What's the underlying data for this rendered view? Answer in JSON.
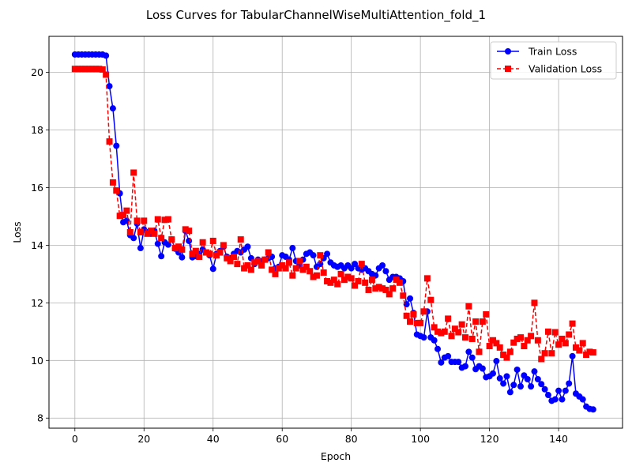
{
  "chart_data": {
    "type": "line",
    "title": "Loss Curves for TabularChannelWiseMultiAttention_fold_1",
    "xlabel": "Epoch",
    "ylabel": "Loss",
    "xlim": [
      -7.5,
      158.5
    ],
    "ylim": [
      7.65,
      21.25
    ],
    "xticks": [
      0,
      20,
      40,
      60,
      80,
      100,
      120,
      140
    ],
    "yticks": [
      8,
      10,
      12,
      14,
      16,
      18,
      20
    ],
    "grid": true,
    "legend_position": "top-right",
    "series": [
      {
        "name": "Train Loss",
        "color": "#0000ff",
        "marker": "circle",
        "linestyle": "solid",
        "x": [
          0,
          1,
          2,
          3,
          4,
          5,
          6,
          7,
          8,
          9,
          10,
          11,
          12,
          13,
          14,
          15,
          16,
          17,
          18,
          19,
          20,
          21,
          22,
          23,
          24,
          25,
          26,
          27,
          28,
          29,
          30,
          31,
          32,
          33,
          34,
          35,
          36,
          37,
          38,
          39,
          40,
          41,
          42,
          43,
          44,
          45,
          46,
          47,
          48,
          49,
          50,
          51,
          52,
          53,
          54,
          55,
          56,
          57,
          58,
          59,
          60,
          61,
          62,
          63,
          64,
          65,
          66,
          67,
          68,
          69,
          70,
          71,
          72,
          73,
          74,
          75,
          76,
          77,
          78,
          79,
          80,
          81,
          82,
          83,
          84,
          85,
          86,
          87,
          88,
          89,
          90,
          91,
          92,
          93,
          94,
          95,
          96,
          97,
          98,
          99,
          100,
          101,
          102,
          103,
          104,
          105,
          106,
          107,
          108,
          109,
          110,
          111,
          112,
          113,
          114,
          115,
          116,
          117,
          118,
          119,
          120,
          121,
          122,
          123,
          124,
          125,
          126,
          127,
          128,
          129,
          130,
          131,
          132,
          133,
          134,
          135,
          136,
          137,
          138,
          139,
          140,
          141,
          142,
          143,
          144,
          145,
          146,
          147,
          148,
          149,
          150
        ],
        "y": [
          20.62,
          20.62,
          20.62,
          20.62,
          20.62,
          20.62,
          20.62,
          20.62,
          20.62,
          20.58,
          19.52,
          18.75,
          17.45,
          15.8,
          14.8,
          14.85,
          14.35,
          14.25,
          14.75,
          13.9,
          14.55,
          14.45,
          14.4,
          14.5,
          14.05,
          13.62,
          14.1,
          14.02,
          14.2,
          13.88,
          13.75,
          13.58,
          14.5,
          14.15,
          13.58,
          13.62,
          13.7,
          13.85,
          13.75,
          13.65,
          13.18,
          13.7,
          13.8,
          13.95,
          13.6,
          13.55,
          13.7,
          13.8,
          13.75,
          13.85,
          13.95,
          13.55,
          13.35,
          13.5,
          13.45,
          13.5,
          13.55,
          13.6,
          13.2,
          13.25,
          13.65,
          13.6,
          13.5,
          13.9,
          13.45,
          13.3,
          13.5,
          13.7,
          13.75,
          13.65,
          13.25,
          13.35,
          13.55,
          13.7,
          13.4,
          13.3,
          13.25,
          13.3,
          13.2,
          13.3,
          13.2,
          13.35,
          13.2,
          13.15,
          13.2,
          13.1,
          13.0,
          12.95,
          13.2,
          13.3,
          13.1,
          12.8,
          12.9,
          12.9,
          12.85,
          12.75,
          11.95,
          12.15,
          11.65,
          10.9,
          10.85,
          10.8,
          11.7,
          10.8,
          10.7,
          10.4,
          9.93,
          10.1,
          10.15,
          9.95,
          9.95,
          9.95,
          9.75,
          9.8,
          10.3,
          10.1,
          9.7,
          9.8,
          9.72,
          9.42,
          9.45,
          9.55,
          9.98,
          9.38,
          9.2,
          9.45,
          8.9,
          9.15,
          9.68,
          9.1,
          9.48,
          9.35,
          9.1,
          9.62,
          9.35,
          9.18,
          9.0,
          8.8,
          8.6,
          8.65,
          8.95,
          8.65,
          8.95,
          9.2,
          10.15,
          8.85,
          8.75,
          8.65,
          8.4,
          8.32,
          8.3
        ]
      },
      {
        "name": "Validation Loss",
        "color": "#ff0000",
        "marker": "square",
        "linestyle": "dashed",
        "x": [
          0,
          1,
          2,
          3,
          4,
          5,
          6,
          7,
          8,
          9,
          10,
          11,
          12,
          13,
          14,
          15,
          16,
          17,
          18,
          19,
          20,
          21,
          22,
          23,
          24,
          25,
          26,
          27,
          28,
          29,
          30,
          31,
          32,
          33,
          34,
          35,
          36,
          37,
          38,
          39,
          40,
          41,
          42,
          43,
          44,
          45,
          46,
          47,
          48,
          49,
          50,
          51,
          52,
          53,
          54,
          55,
          56,
          57,
          58,
          59,
          60,
          61,
          62,
          63,
          64,
          65,
          66,
          67,
          68,
          69,
          70,
          71,
          72,
          73,
          74,
          75,
          76,
          77,
          78,
          79,
          80,
          81,
          82,
          83,
          84,
          85,
          86,
          87,
          88,
          89,
          90,
          91,
          92,
          93,
          94,
          95,
          96,
          97,
          98,
          99,
          100,
          101,
          102,
          103,
          104,
          105,
          106,
          107,
          108,
          109,
          110,
          111,
          112,
          113,
          114,
          115,
          116,
          117,
          118,
          119,
          120,
          121,
          122,
          123,
          124,
          125,
          126,
          127,
          128,
          129,
          130,
          131,
          132,
          133,
          134,
          135,
          136,
          137,
          138,
          139,
          140,
          141,
          142,
          143,
          144,
          145,
          146,
          147,
          148,
          149,
          150
        ],
        "y": [
          20.12,
          20.12,
          20.12,
          20.12,
          20.12,
          20.12,
          20.12,
          20.12,
          20.1,
          19.92,
          17.6,
          16.18,
          15.9,
          15.02,
          15.05,
          15.2,
          14.45,
          16.52,
          14.85,
          14.45,
          14.85,
          14.4,
          14.5,
          14.4,
          14.9,
          14.25,
          14.88,
          14.9,
          14.2,
          13.9,
          13.95,
          13.85,
          14.55,
          14.5,
          13.7,
          13.8,
          13.6,
          14.1,
          13.75,
          13.7,
          14.15,
          13.65,
          13.75,
          14.0,
          13.55,
          13.45,
          13.6,
          13.35,
          14.2,
          13.2,
          13.3,
          13.15,
          13.4,
          13.45,
          13.3,
          13.5,
          13.75,
          13.15,
          13.0,
          13.2,
          13.3,
          13.2,
          13.4,
          12.95,
          13.2,
          13.45,
          13.15,
          13.25,
          13.1,
          12.9,
          12.95,
          13.65,
          13.05,
          12.75,
          12.7,
          12.8,
          12.65,
          13.0,
          12.8,
          12.9,
          12.85,
          12.6,
          12.75,
          13.35,
          12.7,
          12.45,
          12.8,
          12.5,
          12.55,
          12.5,
          12.45,
          12.3,
          12.5,
          12.8,
          12.7,
          12.25,
          11.55,
          11.35,
          11.6,
          11.3,
          11.3,
          11.7,
          12.85,
          12.1,
          11.15,
          11.0,
          10.95,
          11.0,
          11.45,
          10.85,
          11.1,
          10.98,
          11.25,
          10.8,
          11.88,
          10.75,
          11.35,
          10.3,
          11.35,
          11.6,
          10.5,
          10.7,
          10.6,
          10.45,
          10.2,
          10.1,
          10.3,
          10.62,
          10.75,
          10.8,
          10.5,
          10.7,
          10.85,
          12.0,
          10.7,
          10.05,
          10.25,
          11.0,
          10.25,
          10.98,
          10.55,
          10.75,
          10.6,
          10.9,
          11.28,
          10.45,
          10.35,
          10.6,
          10.2,
          10.3,
          10.28
        ]
      }
    ]
  }
}
